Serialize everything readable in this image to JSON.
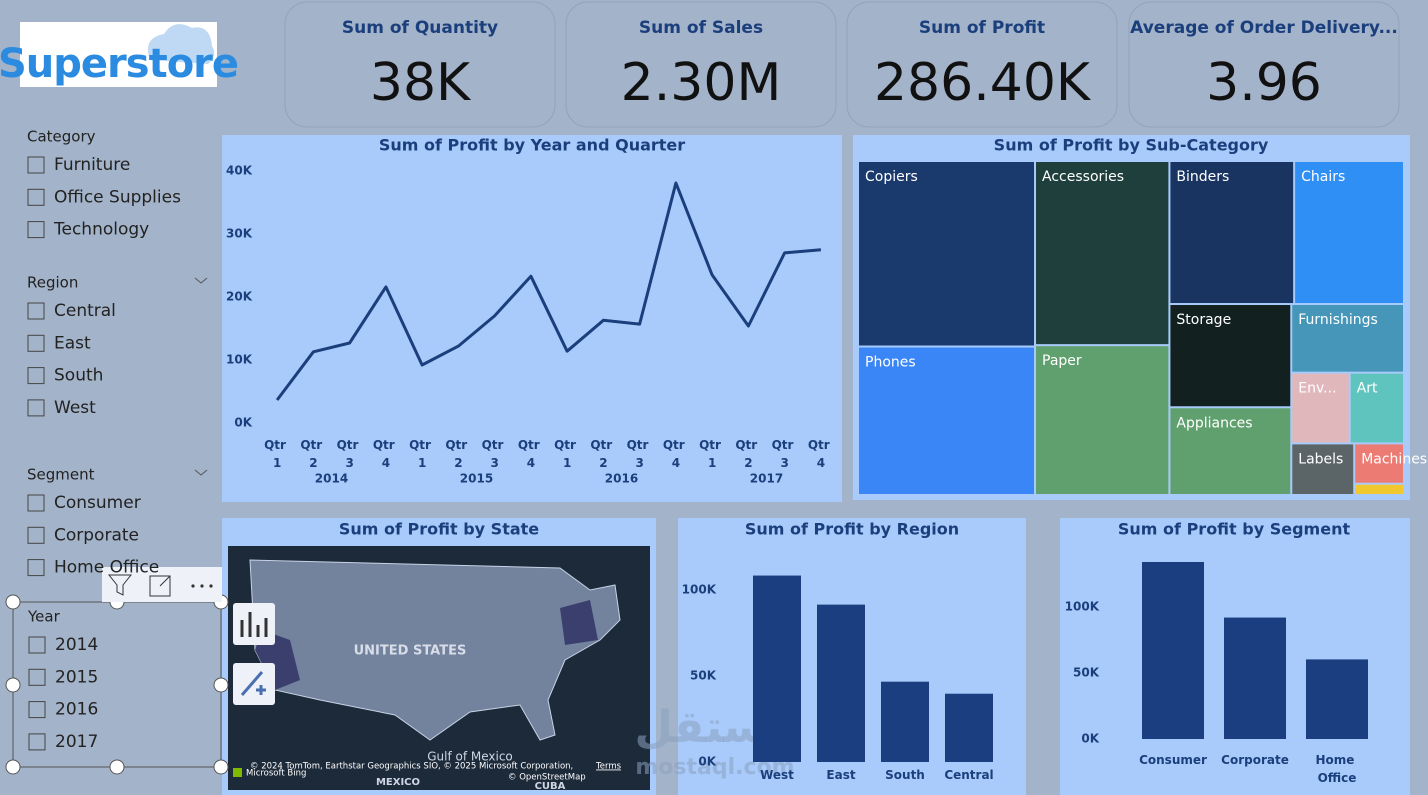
{
  "logo": "Superstore",
  "kpis": [
    {
      "title": "Sum of Quantity",
      "value": "38K"
    },
    {
      "title": "Sum of Sales",
      "value": "2.30M"
    },
    {
      "title": "Sum of Profit",
      "value": "286.40K"
    },
    {
      "title": "Average of Order Delivery...",
      "value": "3.96"
    }
  ],
  "slicers": [
    {
      "title": "Category",
      "items": [
        "Furniture",
        "Office Supplies",
        "Technology"
      ]
    },
    {
      "title": "Region",
      "items": [
        "Central",
        "East",
        "South",
        "West"
      ]
    },
    {
      "title": "Segment",
      "items": [
        "Consumer",
        "Corporate",
        "Home Office"
      ]
    },
    {
      "title": "Year",
      "items": [
        "2014",
        "2015",
        "2016",
        "2017"
      ]
    }
  ],
  "map": {
    "title": "Sum of Profit by State",
    "country": "UNITED STATES",
    "gulf": "Gulf of Mexico",
    "mexico": "MEXICO",
    "cuba": "CUBA",
    "attribution": "© 2024 TomTom, Earthstar Geographics SIO, © 2025 Microsoft Corporation,",
    "terms": "Terms",
    "osm": "© OpenStreetMap",
    "bing": "Microsoft Bing"
  },
  "watermark": {
    "text": "مستقل",
    "site": "mostaql.com"
  },
  "chart_data": [
    {
      "type": "line",
      "title": "Sum of Profit by Year and Quarter",
      "categories": [
        "Qtr 1",
        "Qtr 2",
        "Qtr 3",
        "Qtr 4",
        "Qtr 1",
        "Qtr 2",
        "Qtr 3",
        "Qtr 4",
        "Qtr 1",
        "Qtr 2",
        "Qtr 3",
        "Qtr 4",
        "Qtr 1",
        "Qtr 2",
        "Qtr 3",
        "Qtr 4"
      ],
      "x_groups": [
        "2014",
        "2015",
        "2016",
        "2017"
      ],
      "series": [
        {
          "color": "#1b3f7c",
          "values": [
            3650,
            11300,
            12700,
            21600,
            9200,
            12200,
            17000,
            23300,
            11400,
            16300,
            15700,
            38100,
            23500,
            15400,
            27000,
            27500
          ]
        }
      ],
      "ylim": [
        0,
        42000
      ],
      "yticks": [
        {
          "value": 0,
          "label": "0K"
        },
        {
          "value": 10000,
          "label": "10K"
        },
        {
          "value": 20000,
          "label": "20K"
        },
        {
          "value": 30000,
          "label": "30K"
        },
        {
          "value": 40000,
          "label": "40K"
        }
      ]
    },
    {
      "type": "treemap",
      "title": "Sum of Profit by Sub-Category",
      "categories": [
        "Copiers",
        "Phones",
        "Accessories",
        "Paper",
        "Binders",
        "Chairs",
        "Storage",
        "Appliances",
        "Furnishings",
        "Env...",
        "Art",
        "Labels",
        "Machines",
        null
      ],
      "values": [
        55600,
        44500,
        41900,
        34100,
        30200,
        26600,
        21300,
        18100,
        13100,
        7000,
        6500,
        5500,
        3400,
        950
      ],
      "colors": [
        "#1a3a6e",
        "#3a86f7",
        "#1f3f3c",
        "#5fa06e",
        "#1a3462",
        "#2f8ff5",
        "#12211f",
        "#5fa06e",
        "#4596b8",
        "#e0b8bb",
        "#5fc4be",
        "#5b6568",
        "#ec7b73",
        "#f2c830"
      ]
    },
    {
      "type": "bar",
      "title": "Sum of Profit by Region",
      "color": "#1a3e80",
      "categories": [
        "West",
        "East",
        "South",
        "Central"
      ],
      "values": [
        108400,
        91500,
        46700,
        39700
      ],
      "ylim": [
        0,
        110000
      ],
      "yticks": [
        {
          "value": 0,
          "label": "0K"
        },
        {
          "value": 50000,
          "label": "50K"
        },
        {
          "value": 100000,
          "label": "100K"
        }
      ]
    },
    {
      "type": "bar",
      "title": "Sum of Profit by Segment",
      "color": "#1a3e80",
      "categories": [
        "Consumer",
        "Corporate",
        "Home Office"
      ],
      "values": [
        134100,
        92000,
        60300
      ],
      "ylim": [
        0,
        135000
      ],
      "yticks": [
        {
          "value": 0,
          "label": "0K"
        },
        {
          "value": 50000,
          "label": "50K"
        },
        {
          "value": 100000,
          "label": "100K"
        }
      ]
    }
  ]
}
